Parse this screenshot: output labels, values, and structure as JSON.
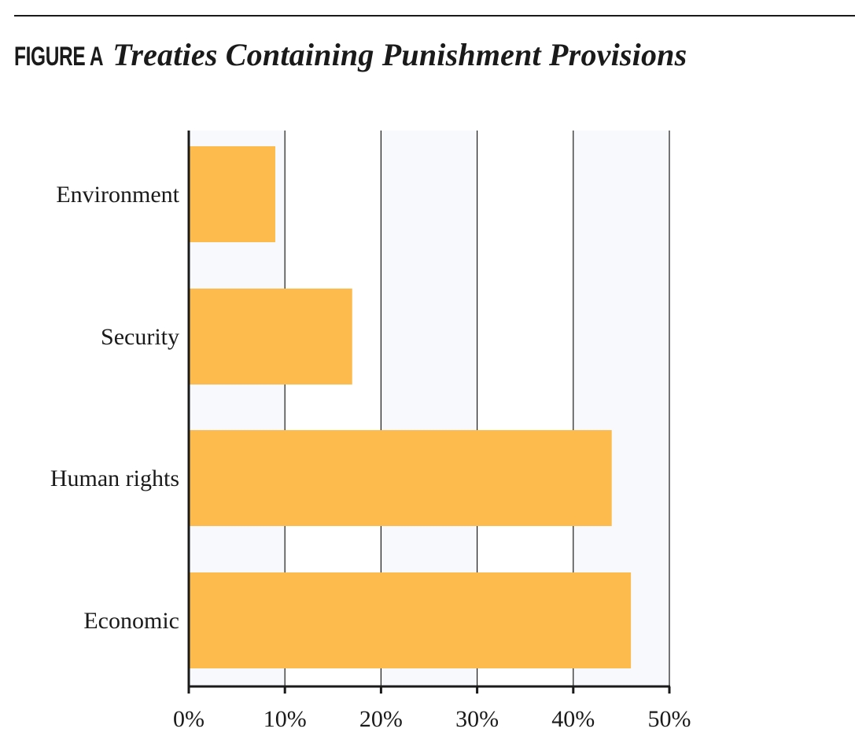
{
  "figure": {
    "label": "FIGURE A",
    "title": "Treaties Containing Punishment Provisions"
  },
  "chart_data": {
    "type": "bar",
    "orientation": "horizontal",
    "categories": [
      "Environment",
      "Security",
      "Human rights",
      "Economic"
    ],
    "values": [
      9,
      17,
      44,
      46
    ],
    "unit": "%",
    "xlim": [
      0,
      50
    ],
    "x_ticks": [
      0,
      10,
      20,
      30,
      40,
      50
    ],
    "x_tick_labels": [
      "0%",
      "10%",
      "20%",
      "30%",
      "40%",
      "50%"
    ],
    "xlabel": "",
    "ylabel": "",
    "grid": "vertical",
    "legend": "none"
  },
  "colors": {
    "bar": "#FDBA4D",
    "band": "#F7F9FD",
    "axis": "#1a1a1a",
    "grid": "#1a1a1a",
    "text": "#1a1a1a"
  }
}
